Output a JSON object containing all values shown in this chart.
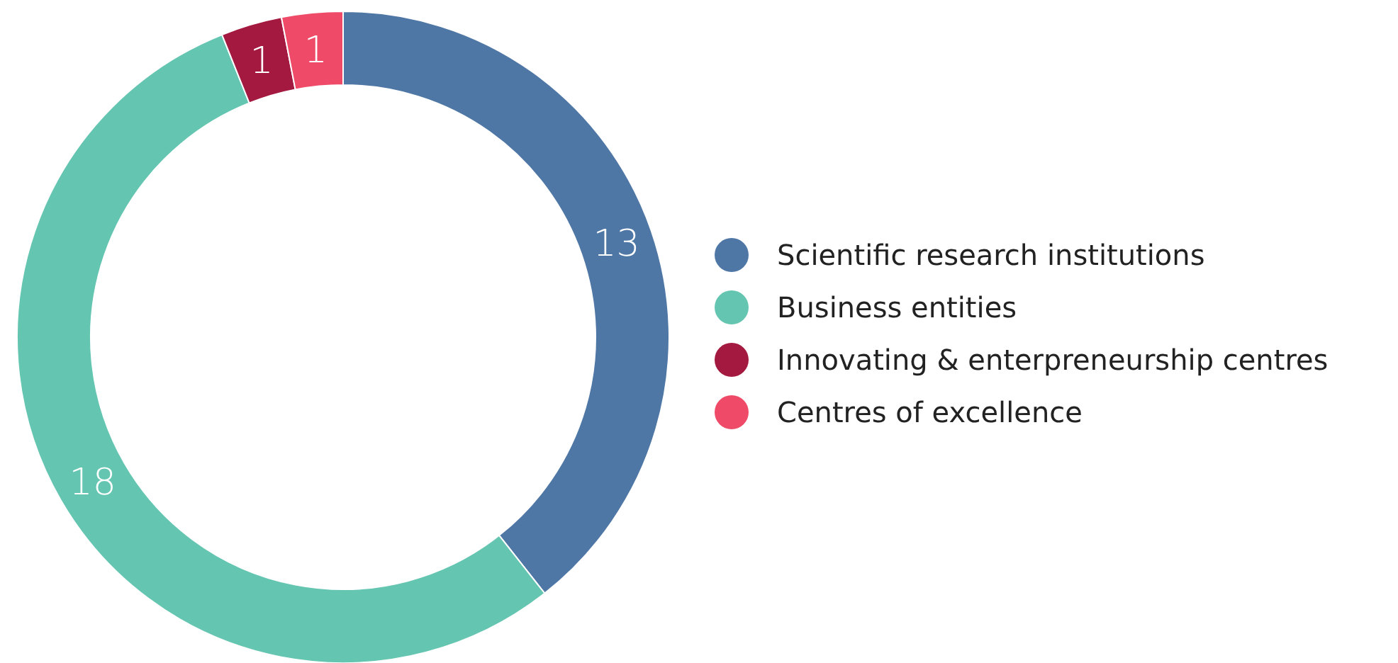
{
  "chart_data": {
    "type": "donut",
    "categories": [
      "Scientific research institutions",
      "Business entities",
      "Innovating & enterpreneurship centres",
      "Centres of excellence"
    ],
    "values": [
      13,
      18,
      1,
      1
    ],
    "colors": [
      "#4e77a5",
      "#64c5b1",
      "#a3193f",
      "#ef4a68"
    ],
    "data_labels": true,
    "legend": "right"
  }
}
